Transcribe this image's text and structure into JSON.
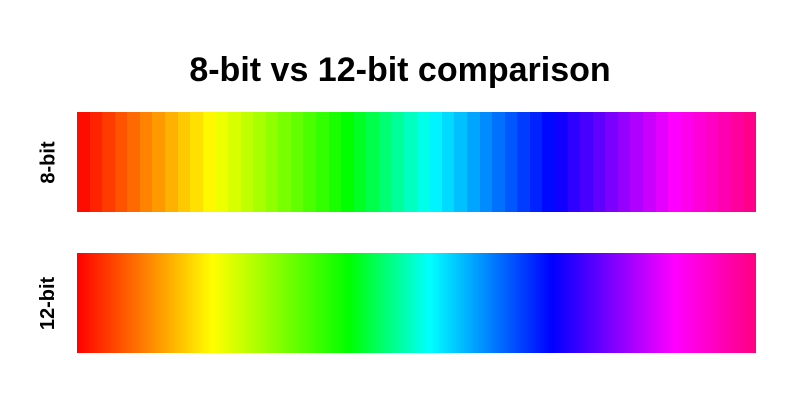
{
  "title": "8-bit vs 12-bit comparison",
  "rows": [
    {
      "label": "8-bit",
      "banding_steps": 54
    },
    {
      "label": "12-bit",
      "banding_steps": null
    }
  ],
  "gradient": {
    "stops": [
      "#ff0000",
      "#ffff00",
      "#00ff00",
      "#00ffff",
      "#0000ff",
      "#ff00ff",
      "#ff0080"
    ],
    "stop_positions": [
      0,
      0.2,
      0.4,
      0.52,
      0.7,
      0.88,
      1.0
    ]
  }
}
